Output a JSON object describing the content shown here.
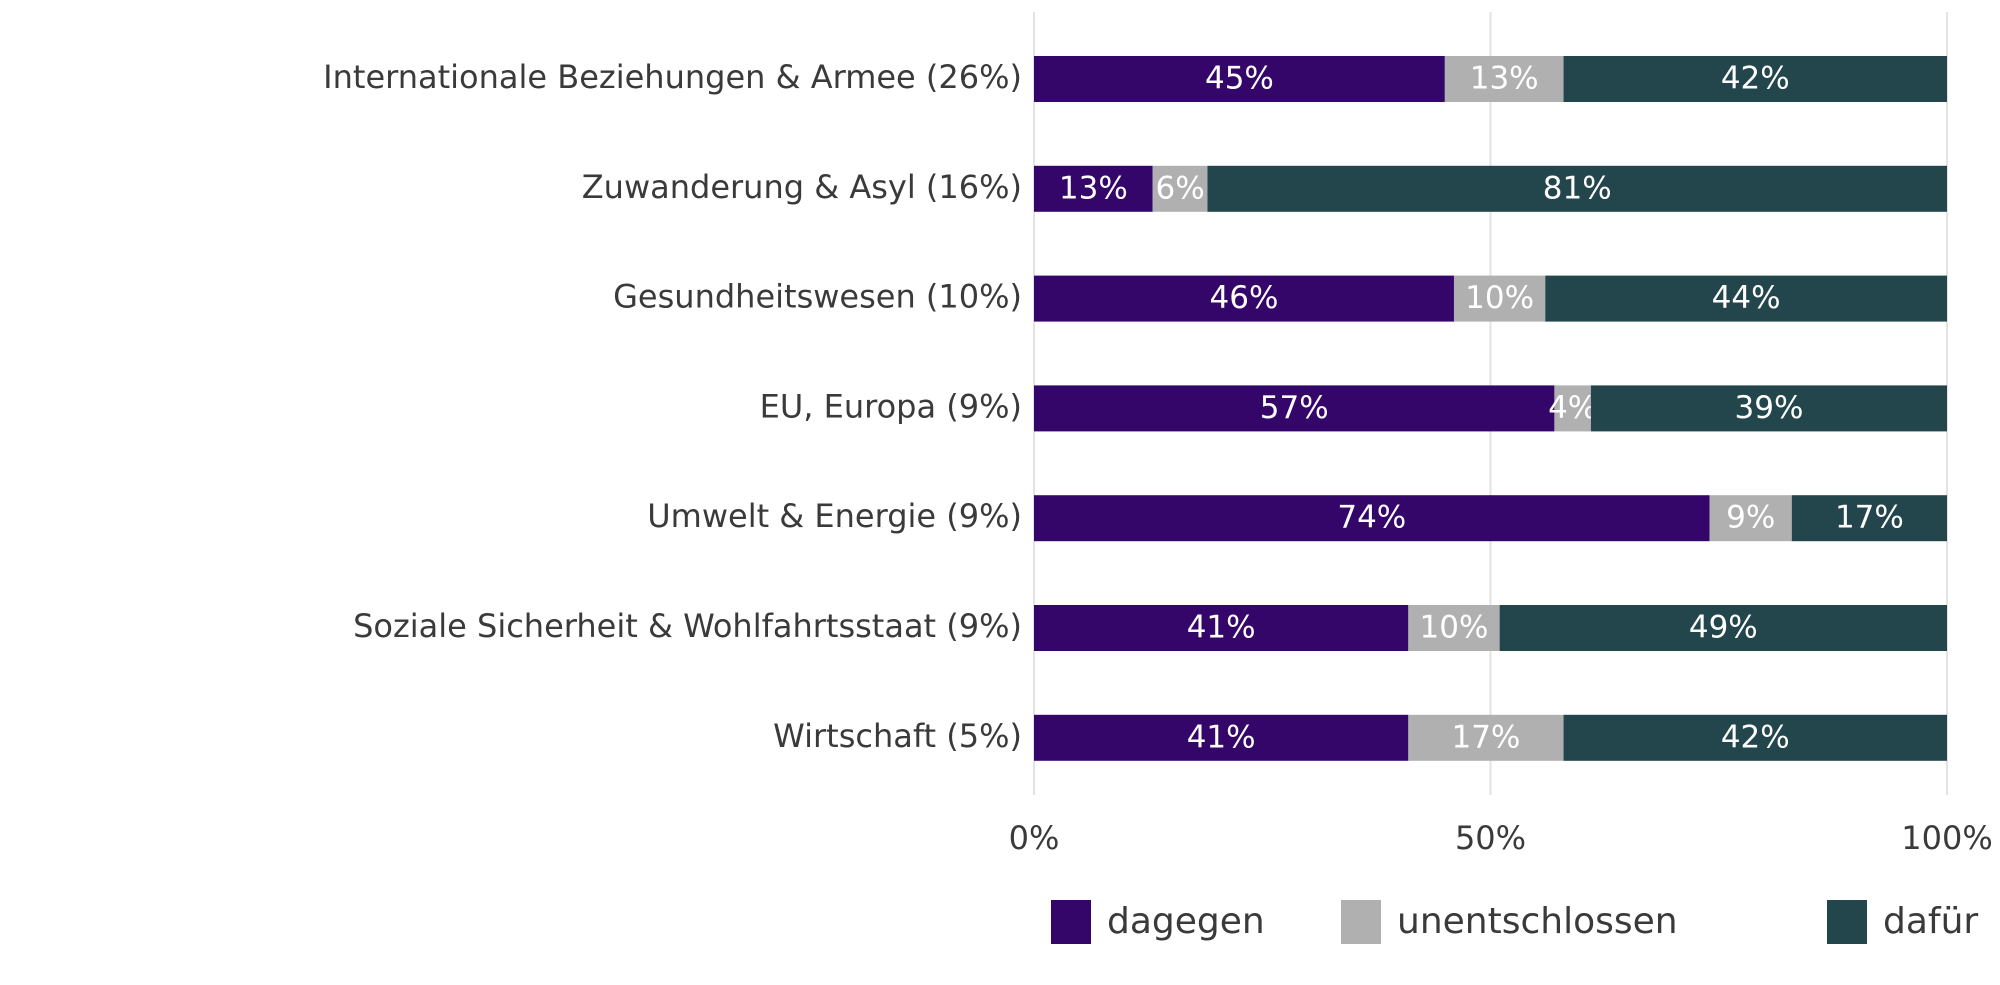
{
  "chart_data": {
    "type": "bar",
    "orientation": "horizontal",
    "stacked": true,
    "percent": true,
    "title": "",
    "xlabel": "",
    "ylabel": "",
    "categories": [
      "Internationale Beziehungen & Armee (26%)",
      "Zuwanderung & Asyl (16%)",
      "Gesundheitswesen (10%)",
      "EU, Europa (9%)",
      "Umwelt & Energie (9%)",
      "Soziale Sicherheit & Wohlfahrtsstaat (9%)",
      "Wirtschaft (5%)"
    ],
    "series": [
      {
        "name": "dagegen",
        "color": "#35066a",
        "values": [
          45,
          13,
          46,
          57,
          74,
          41,
          41
        ]
      },
      {
        "name": "unentschlossen",
        "color": "#b0b0b0",
        "values": [
          13,
          6,
          10,
          4,
          9,
          10,
          17
        ]
      },
      {
        "name": "dafür",
        "color": "#23464d",
        "values": [
          42,
          81,
          44,
          39,
          17,
          49,
          42
        ]
      }
    ],
    "xlim": [
      0,
      100
    ],
    "x_ticks": [
      {
        "value": 0,
        "label": "0%"
      },
      {
        "value": 50,
        "label": "50%"
      },
      {
        "value": 100,
        "label": "100%"
      }
    ],
    "grid": true,
    "legend_position": "bottom"
  }
}
